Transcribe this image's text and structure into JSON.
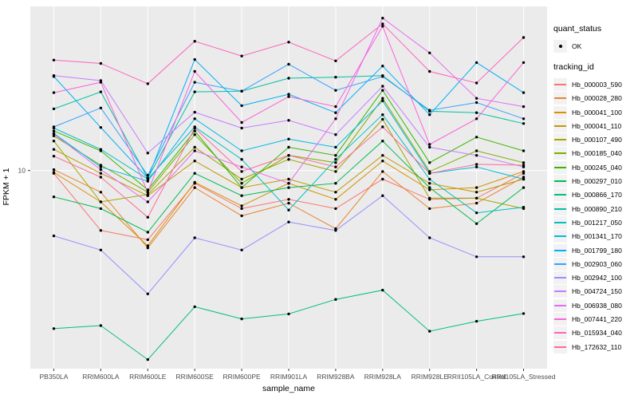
{
  "figure": {
    "background": "#FFFFFF",
    "panel_bg": "#EBEBEB",
    "grid_color": "#FFFFFF",
    "tick_color": "#333333",
    "tick_label_color": "#4D4D4D",
    "point_color": "#000000",
    "legend_key_bg": "#F2F2F2"
  },
  "axes": {
    "x_title": "sample_name",
    "y_title": "FPKM + 1",
    "y_tick_labels": [
      "10"
    ]
  },
  "legend": {
    "quant_title": "quant_status",
    "quant_items": [
      {
        "label": "OK",
        "marker": "black-point"
      }
    ],
    "tracking_title": "tracking_id"
  },
  "chart_data": {
    "type": "line",
    "title": "",
    "xlabel": "sample_name",
    "ylabel": "FPKM + 1",
    "y_scale": "log10",
    "ylim": [
      1.15,
      60
    ],
    "y_tick_values": [
      10
    ],
    "grid": "major",
    "legend_position": "right",
    "x_categories": [
      "PB350LA",
      "RRIM600LA",
      "RRIM600LE",
      "RRIM600SE",
      "RRIM600PE",
      "RRIM901LA",
      "RRIM928BA",
      "RRIM928LA",
      "RRIM928LE",
      "RRII105LA_Control",
      "RRII105LA_Stressed"
    ],
    "series": [
      {
        "name": "Hb_000003_590",
        "color": "#F8766D",
        "values": [
          9.7,
          5.2,
          4.7,
          8.7,
          6.6,
          7.3,
          6.6,
          9.1,
          7.3,
          7.4,
          9.7
        ]
      },
      {
        "name": "Hb_000028_280",
        "color": "#EA8331",
        "values": [
          10.1,
          7.9,
          4.3,
          8.3,
          6.1,
          7.0,
          5.3,
          9.9,
          6.6,
          7.0,
          9.3
        ]
      },
      {
        "name": "Hb_000041_100",
        "color": "#D89000",
        "values": [
          9.8,
          7.1,
          4.4,
          8.8,
          6.8,
          8.7,
          7.3,
          11.1,
          8.1,
          8.3,
          9.9
        ]
      },
      {
        "name": "Hb_000041_110",
        "color": "#C09B00",
        "values": [
          12.6,
          9.7,
          7.6,
          11.1,
          8.3,
          9.1,
          7.9,
          11.8,
          8.7,
          7.9,
          9.1
        ]
      },
      {
        "name": "Hb_000107_490",
        "color": "#A3A500",
        "values": [
          13.8,
          7.1,
          7.7,
          12.9,
          9.1,
          11.3,
          9.9,
          17.5,
          7.4,
          7.4,
          6.6
        ]
      },
      {
        "name": "Hb_000185_040",
        "color": "#7CAE00",
        "values": [
          14.6,
          10.6,
          7.9,
          14.8,
          8.7,
          11.8,
          10.9,
          22.0,
          9.9,
          12.4,
          10.9
        ]
      },
      {
        "name": "Hb_000245_040",
        "color": "#39B600",
        "values": [
          15.4,
          12.4,
          8.1,
          15.4,
          8.3,
          12.9,
          11.8,
          24.0,
          10.9,
          14.4,
          12.4
        ]
      },
      {
        "name": "Hb_000297_010",
        "color": "#00BB4E",
        "values": [
          7.5,
          6.6,
          5.1,
          9.7,
          7.6,
          8.3,
          8.7,
          13.8,
          8.3,
          5.6,
          8.3
        ]
      },
      {
        "name": "Hb_000866_170",
        "color": "#00BF7D",
        "values": [
          1.78,
          1.84,
          1.27,
          2.26,
          1.98,
          2.09,
          2.45,
          2.71,
          1.73,
          1.93,
          2.1
        ]
      },
      {
        "name": "Hb_000890_210",
        "color": "#00C1A3",
        "values": [
          19.6,
          23.6,
          9.2,
          23.6,
          23.8,
          27.4,
          27.7,
          28.2,
          19.1,
          18.8,
          16.7
        ]
      },
      {
        "name": "Hb_001217_050",
        "color": "#00BFC4",
        "values": [
          15.9,
          12.6,
          9.1,
          16.1,
          11.3,
          6.5,
          11.3,
          18.4,
          9.1,
          6.3,
          6.7
        ]
      },
      {
        "name": "Hb_001341_170",
        "color": "#00BAE0",
        "values": [
          15.0,
          10.4,
          8.9,
          17.6,
          12.4,
          14.1,
          12.9,
          21.4,
          9.7,
          10.4,
          9.1
        ]
      },
      {
        "name": "Hb_001799_180",
        "color": "#00B0F6",
        "values": [
          27.9,
          16.0,
          9.2,
          33.6,
          20.3,
          23.0,
          18.8,
          31.3,
          18.4,
          32.5,
          23.4
        ]
      },
      {
        "name": "Hb_002903_060",
        "color": "#35A2FF",
        "values": [
          16.1,
          19.8,
          9.5,
          26.2,
          23.8,
          31.9,
          24.0,
          27.9,
          19.3,
          21.0,
          17.6
        ]
      },
      {
        "name": "Hb_002942_100",
        "color": "#9590FF",
        "values": [
          4.9,
          4.2,
          2.6,
          4.8,
          4.2,
          5.7,
          5.2,
          7.6,
          4.8,
          3.9,
          3.9
        ]
      },
      {
        "name": "Hb_004724_150",
        "color": "#C77CFF",
        "values": [
          28.2,
          26.7,
          12.1,
          18.9,
          15.9,
          17.3,
          14.8,
          25.1,
          12.9,
          11.8,
          10.4
        ]
      },
      {
        "name": "Hb_006938_080",
        "color": "#E76BF3",
        "values": [
          14.9,
          10.1,
          7.1,
          12.4,
          10.4,
          8.7,
          17.6,
          52.8,
          36.1,
          22.0,
          20.1
        ]
      },
      {
        "name": "Hb_007441_220",
        "color": "#FA62DB",
        "values": [
          23.4,
          26.2,
          7.9,
          29.5,
          16.9,
          22.4,
          20.1,
          48.3,
          13.3,
          17.6,
          32.5
        ]
      },
      {
        "name": "Hb_015934_040",
        "color": "#FF62BC",
        "values": [
          33.4,
          32.2,
          25.8,
          41.0,
          34.9,
          40.6,
          33.1,
          49.6,
          29.5,
          26.0,
          42.7
        ]
      },
      {
        "name": "Hb_172632_110",
        "color": "#FF6A98",
        "values": [
          11.7,
          9.3,
          6.0,
          15.9,
          9.9,
          11.8,
          10.4,
          16.1,
          9.7,
          10.7,
          10.6
        ]
      }
    ]
  }
}
